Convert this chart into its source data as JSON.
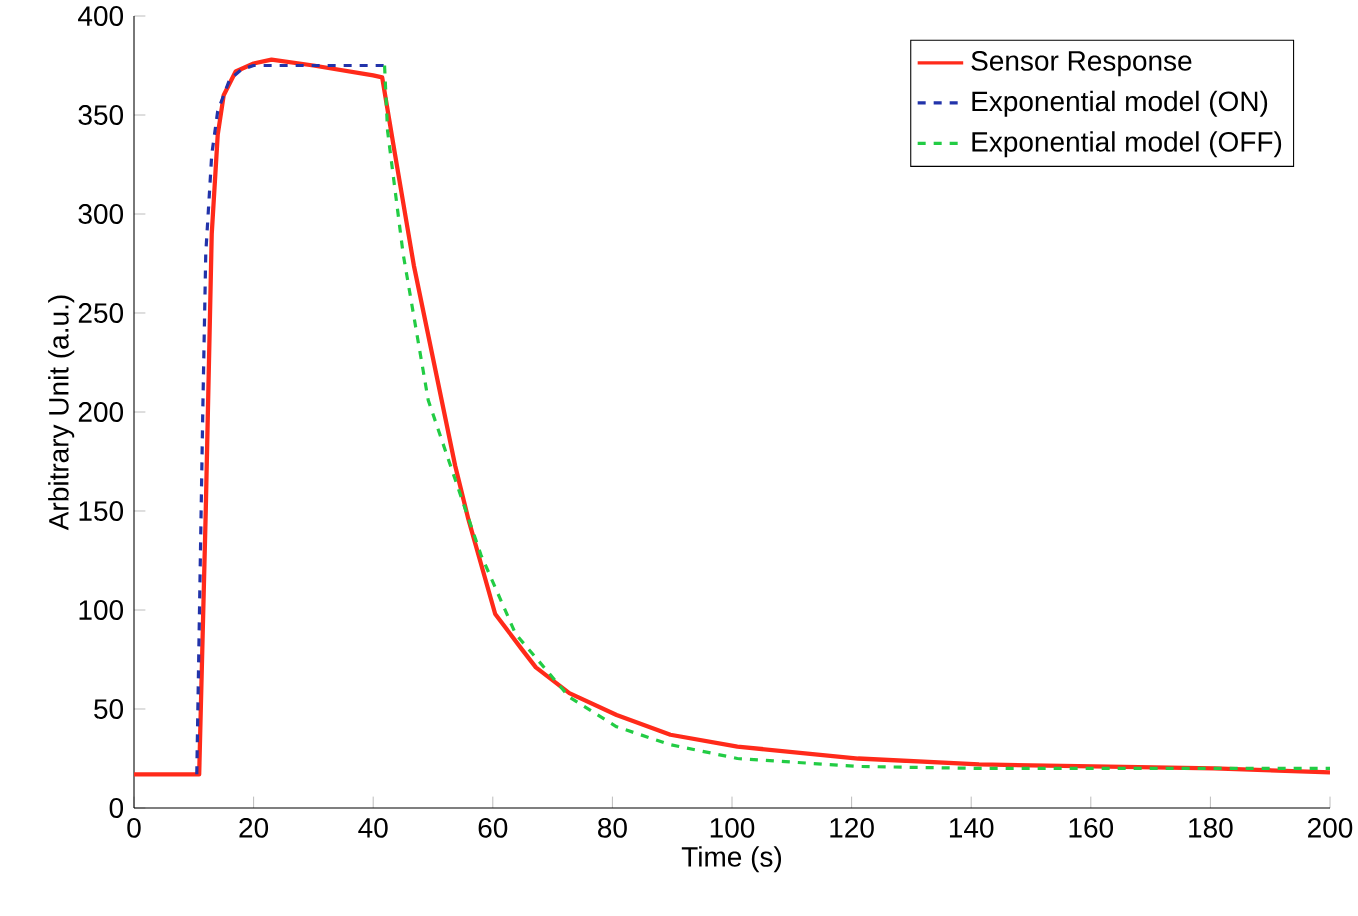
{
  "chart_data": {
    "type": "line",
    "xlabel": "Time (s)",
    "ylabel": "Arbitrary Unit (a.u.)",
    "xlim": [
      0,
      200
    ],
    "ylim": [
      0,
      400
    ],
    "xticks": [
      0,
      20,
      40,
      60,
      80,
      100,
      120,
      140,
      160,
      180,
      200
    ],
    "yticks": [
      0,
      50,
      100,
      150,
      200,
      250,
      300,
      350,
      400
    ],
    "legend": "top right",
    "grid": false,
    "series": [
      {
        "name": "Sensor Response",
        "color": "#ff2a1a",
        "line_style": "solid",
        "x": [
          0,
          10.9,
          12,
          13,
          14,
          15,
          17,
          20,
          23,
          30,
          40,
          41.5,
          43.6,
          46.8,
          53.7,
          55.9,
          60.4,
          64.9,
          67.2,
          72.8,
          80.7,
          89.7,
          100.9,
          121.1,
          141.3,
          160.4,
          180.6,
          200
        ],
        "values": [
          17,
          17,
          150,
          290,
          340,
          360,
          372,
          376,
          378,
          375,
          370,
          369,
          331,
          274,
          173,
          146,
          98,
          80,
          71,
          58,
          47,
          37,
          31,
          25,
          22,
          21,
          20,
          18
        ]
      },
      {
        "name": "Exponential model (ON)",
        "color": "#2233aa",
        "line_style": "dashed",
        "x": [
          10.5,
          11.5,
          12,
          13,
          14,
          16,
          18,
          20,
          30,
          41.9
        ],
        "values": [
          17,
          200,
          280,
          330,
          352,
          368,
          373,
          375,
          375,
          375
        ]
      },
      {
        "name": "Exponential model (OFF)",
        "color": "#22cc44",
        "line_style": "dashed",
        "x": [
          41.9,
          42.4,
          45,
          49.2,
          53.7,
          58,
          63.8,
          72.8,
          80.7,
          89.7,
          100.9,
          121,
          141,
          160,
          180,
          200
        ],
        "values": [
          375,
          342,
          280,
          206,
          166,
          128,
          88,
          56,
          41,
          32,
          25,
          21,
          20,
          20,
          20,
          20
        ]
      }
    ]
  }
}
